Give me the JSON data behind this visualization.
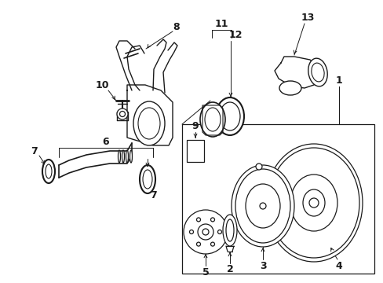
{
  "bg_color": "#ffffff",
  "fig_width": 4.89,
  "fig_height": 3.6,
  "dpi": 100,
  "line_color": "#1a1a1a",
  "lw": 0.9
}
